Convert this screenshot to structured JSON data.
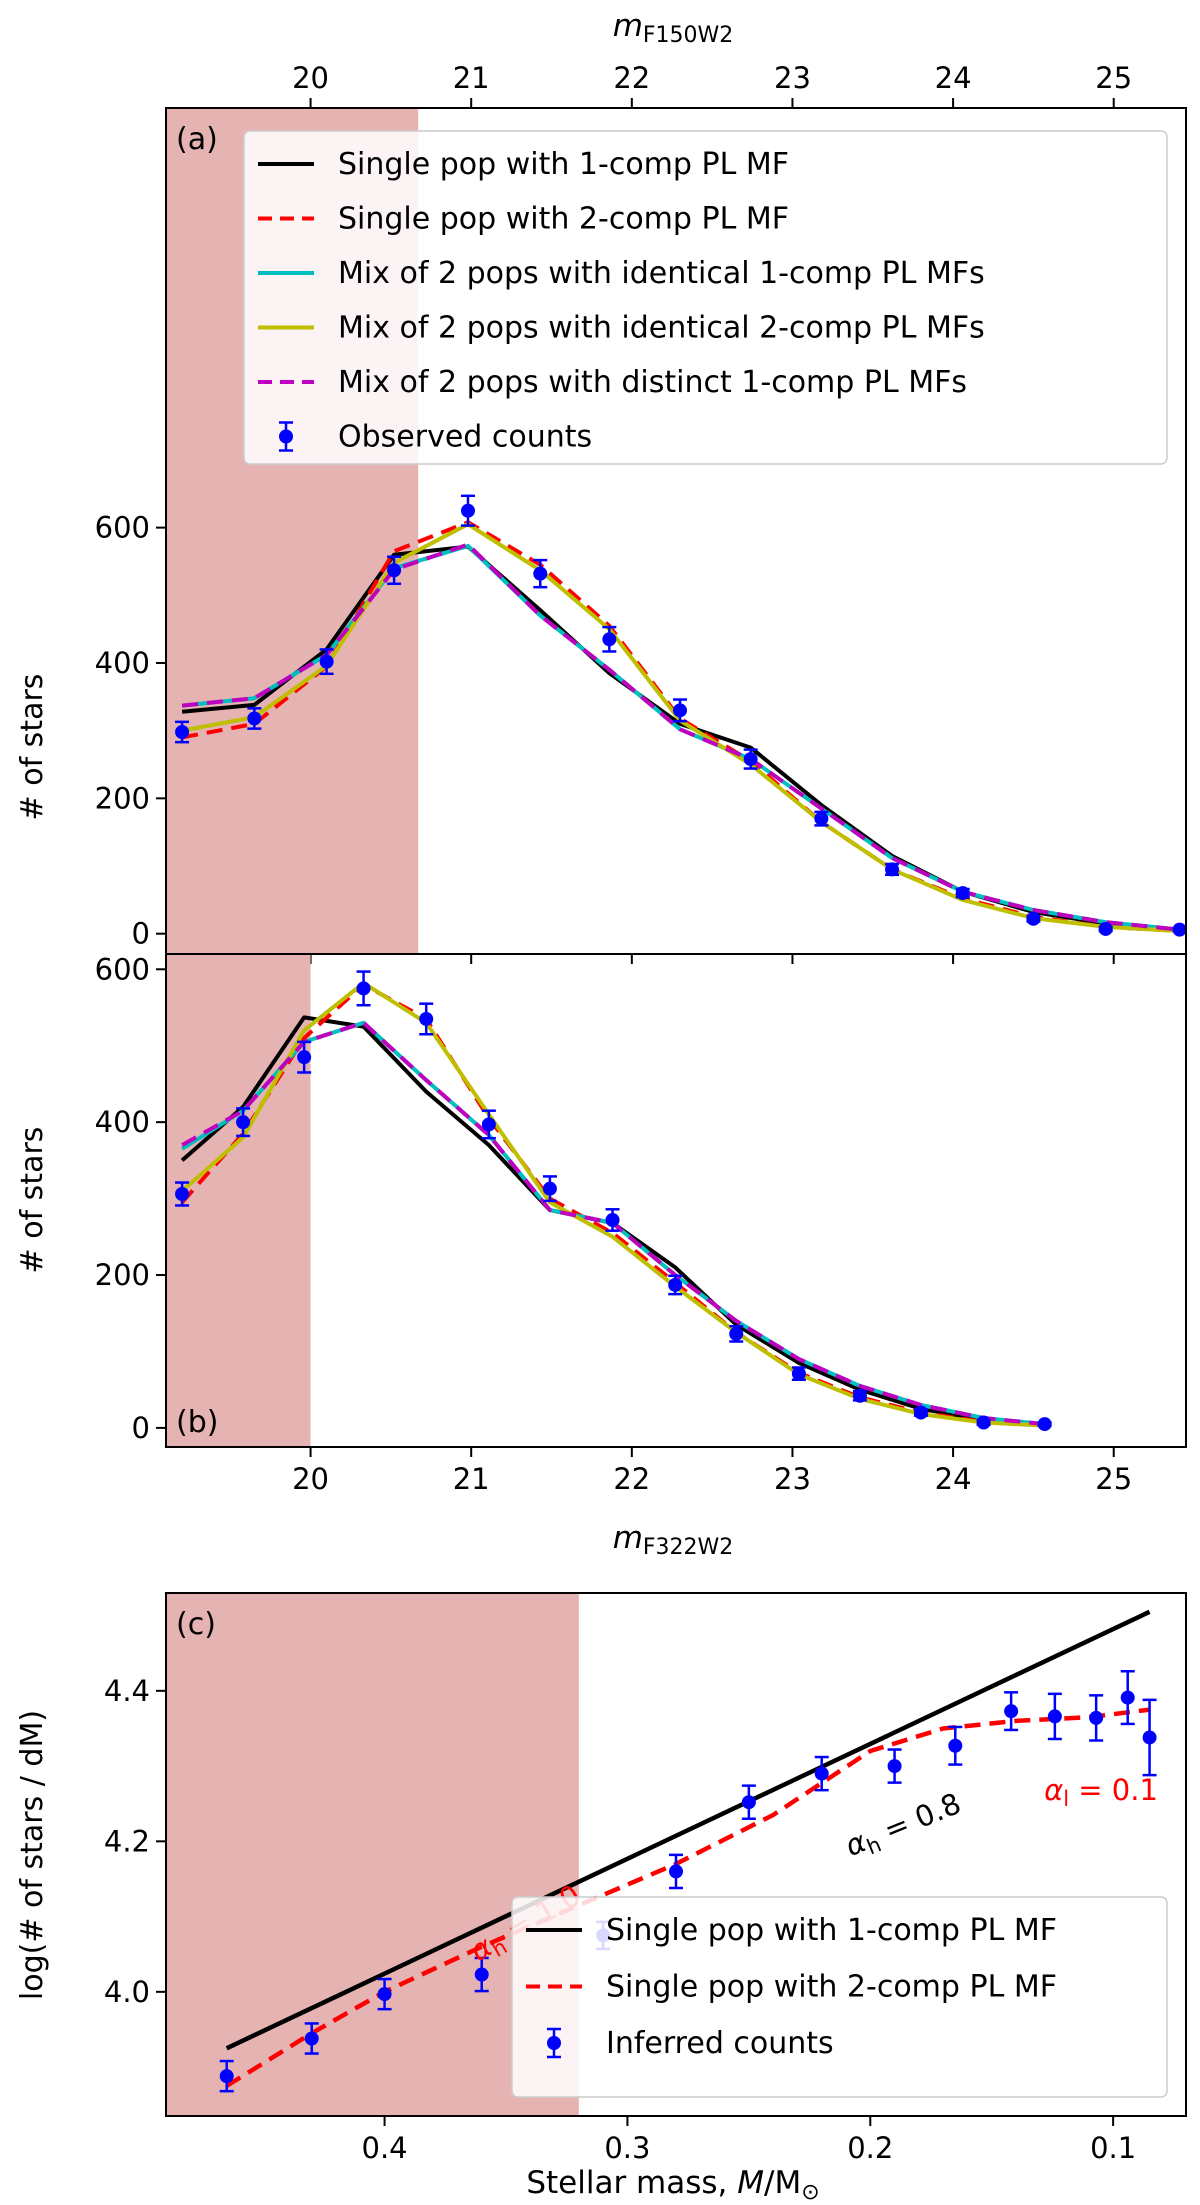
{
  "chart_data": [
    {
      "panel": "(a)",
      "type": "line",
      "top_xlabel": "m_F150W2",
      "top_xlabel_main": "m",
      "top_xlabel_sub": "F150W2",
      "ylabel": "# of stars",
      "xlim": [
        19.1,
        25.45
      ],
      "ylim": [
        -30,
        1220
      ],
      "x_ticks": [
        20,
        21,
        22,
        23,
        24,
        25
      ],
      "x_tick_labels": [
        "20",
        "21",
        "22",
        "23",
        "24",
        "25"
      ],
      "y_ticks": [
        0,
        200,
        400,
        600
      ],
      "y_tick_labels": [
        "0",
        "200",
        "400",
        "600"
      ],
      "shaded_region": [
        19.1,
        20.67
      ],
      "legend_position": "top-right",
      "x": [
        19.2,
        19.65,
        20.1,
        20.52,
        20.98,
        21.43,
        21.86,
        22.3,
        22.74,
        23.18,
        23.62,
        24.06,
        24.5,
        24.95,
        25.41
      ],
      "series": [
        {
          "name": "Single pop with 1-comp PL MF",
          "color": "#000000",
          "style": "solid",
          "values": [
            328,
            338,
            420,
            560,
            572,
            478,
            385,
            310,
            275,
            190,
            115,
            62,
            32,
            15,
            5
          ]
        },
        {
          "name": "Single pop with 2-comp PL MF",
          "color": "#ff0000",
          "style": "dashed",
          "values": [
            290,
            310,
            395,
            565,
            608,
            545,
            455,
            318,
            255,
            165,
            95,
            52,
            25,
            10,
            4
          ]
        },
        {
          "name": "Mix of 2 pops with identical 1-comp PL MFs",
          "color": "#00bfbf",
          "style": "solid",
          "values": [
            337,
            348,
            412,
            540,
            573,
            470,
            390,
            302,
            258,
            185,
            112,
            62,
            35,
            17,
            6
          ]
        },
        {
          "name": "Mix of 2 pops with identical 2-comp PL MFs",
          "color": "#bfbf00",
          "style": "solid",
          "values": [
            300,
            320,
            396,
            548,
            605,
            537,
            450,
            315,
            250,
            165,
            95,
            50,
            23,
            10,
            4
          ]
        },
        {
          "name": "Mix of 2 pops with distinct 1-comp PL MFs",
          "color": "#bf00bf",
          "style": "dashed",
          "values": [
            337,
            348,
            412,
            538,
            575,
            470,
            390,
            302,
            258,
            185,
            112,
            62,
            35,
            17,
            6
          ]
        }
      ],
      "observed": {
        "name": "Observed counts",
        "color": "#0000ff",
        "values": [
          298,
          318,
          402,
          537,
          625,
          532,
          435,
          330,
          258,
          170,
          95,
          60,
          22,
          7,
          6
        ],
        "errors": [
          15,
          15,
          18,
          20,
          22,
          20,
          18,
          16,
          14,
          10,
          8,
          6,
          4,
          3,
          2
        ]
      }
    },
    {
      "panel": "(b)",
      "type": "line",
      "xlabel": "m_F322W2",
      "xlabel_main": "m",
      "xlabel_sub": "F322W2",
      "ylabel": "# of stars",
      "xlim": [
        19.1,
        25.45
      ],
      "ylim": [
        -25,
        620
      ],
      "x_ticks": [
        20,
        21,
        22,
        23,
        24,
        25
      ],
      "x_tick_labels": [
        "20",
        "21",
        "22",
        "23",
        "24",
        "25"
      ],
      "y_ticks": [
        0,
        200,
        400,
        600
      ],
      "y_tick_labels": [
        "0",
        "200",
        "400",
        "600"
      ],
      "shaded_region": [
        19.1,
        20.0
      ],
      "x": [
        19.2,
        19.58,
        19.96,
        20.33,
        20.72,
        21.11,
        21.49,
        21.88,
        22.27,
        22.65,
        23.04,
        23.42,
        23.8,
        24.19,
        24.57
      ],
      "series": [
        {
          "name": "Single pop with 1-comp PL MF",
          "color": "#000000",
          "style": "solid",
          "values": [
            350,
            420,
            537,
            525,
            440,
            370,
            285,
            268,
            210,
            135,
            85,
            50,
            25,
            10,
            5
          ]
        },
        {
          "name": "Single pop with 2-comp PL MF",
          "color": "#ff0000",
          "style": "dashed",
          "values": [
            295,
            385,
            510,
            580,
            535,
            405,
            300,
            255,
            190,
            125,
            72,
            40,
            20,
            8,
            3
          ]
        },
        {
          "name": "Mix of 2 pops with identical 1-comp PL MFs",
          "color": "#00bfbf",
          "style": "solid",
          "values": [
            365,
            415,
            505,
            530,
            455,
            383,
            285,
            268,
            200,
            140,
            90,
            55,
            30,
            13,
            5
          ]
        },
        {
          "name": "Mix of 2 pops with identical 2-comp PL MFs",
          "color": "#bfbf00",
          "style": "solid",
          "values": [
            310,
            380,
            520,
            582,
            530,
            410,
            295,
            250,
            185,
            125,
            70,
            38,
            18,
            7,
            3
          ]
        },
        {
          "name": "Mix of 2 pops with distinct 1-comp PL MFs",
          "color": "#bf00bf",
          "style": "dashed",
          "values": [
            370,
            415,
            505,
            530,
            455,
            383,
            285,
            268,
            200,
            140,
            90,
            55,
            30,
            13,
            5
          ]
        }
      ],
      "observed": {
        "name": "Observed counts",
        "color": "#0000ff",
        "values": [
          306,
          400,
          485,
          575,
          535,
          397,
          313,
          272,
          187,
          123,
          71,
          42,
          20,
          7,
          5
        ],
        "errors": [
          15,
          18,
          20,
          22,
          20,
          18,
          16,
          14,
          12,
          10,
          8,
          6,
          4,
          3,
          2
        ]
      }
    },
    {
      "panel": "(c)",
      "type": "line",
      "xlabel": "Stellar mass, M/M⊙",
      "xlabel_prefix": "Stellar mass, ",
      "xlabel_m": "M",
      "xlabel_suffix": "/M",
      "xlabel_sun": "⊙",
      "ylabel": "log(# of stars / dM)",
      "x_scale": "reversed",
      "xlim": [
        0.49,
        0.07
      ],
      "ylim": [
        3.835,
        4.53
      ],
      "x_ticks": [
        0.4,
        0.3,
        0.2,
        0.1
      ],
      "x_tick_labels": [
        "0.4",
        "0.3",
        "0.2",
        "0.1"
      ],
      "y_ticks": [
        4.0,
        4.2,
        4.4
      ],
      "y_tick_labels": [
        "4.0",
        "4.2",
        "4.4"
      ],
      "shaded_region": [
        0.49,
        0.32
      ],
      "legend_position": "lower-right",
      "series": [
        {
          "name": "Single pop with 1-comp PL MF",
          "color": "#000000",
          "style": "solid",
          "x": [
            0.465,
            0.085
          ],
          "values": [
            3.925,
            4.505
          ]
        },
        {
          "name": "Single pop with 2-comp PL MF",
          "color": "#ff0000",
          "style": "dashed",
          "x": [
            0.465,
            0.43,
            0.4,
            0.36,
            0.32,
            0.28,
            0.24,
            0.2,
            0.17,
            0.14,
            0.11,
            0.085
          ],
          "values": [
            3.875,
            3.945,
            4.0,
            4.06,
            4.115,
            4.17,
            4.235,
            4.32,
            4.35,
            4.36,
            4.365,
            4.375
          ]
        }
      ],
      "observed": {
        "name": "Inferred counts",
        "color": "#0000ff",
        "x": [
          0.465,
          0.43,
          0.4,
          0.36,
          0.31,
          0.28,
          0.25,
          0.22,
          0.19,
          0.165,
          0.142,
          0.124,
          0.107,
          0.094,
          0.085
        ],
        "values": [
          3.888,
          3.938,
          3.997,
          4.023,
          4.075,
          4.16,
          4.252,
          4.29,
          4.3,
          4.327,
          4.373,
          4.366,
          4.364,
          4.391,
          4.338
        ],
        "errors": [
          0.02,
          0.02,
          0.02,
          0.022,
          0.018,
          0.022,
          0.022,
          0.022,
          0.022,
          0.025,
          0.025,
          0.03,
          0.03,
          0.035,
          0.05
        ]
      },
      "annotations": [
        {
          "text_main": "α",
          "text_sub": "h",
          "text_value": " = 1.0",
          "color": "#ff0000",
          "x": 0.34,
          "y": 4.08,
          "rotation": -30
        },
        {
          "text_main": "α",
          "text_sub": "h",
          "text_value": " = 0.8",
          "color": "#000000",
          "x": 0.185,
          "y": 4.21,
          "rotation": -22
        },
        {
          "text_main": "α",
          "text_sub": "l",
          "text_value": " = 0.1",
          "color": "#ff0000",
          "x": 0.105,
          "y": 4.255,
          "rotation": 0
        }
      ]
    }
  ]
}
